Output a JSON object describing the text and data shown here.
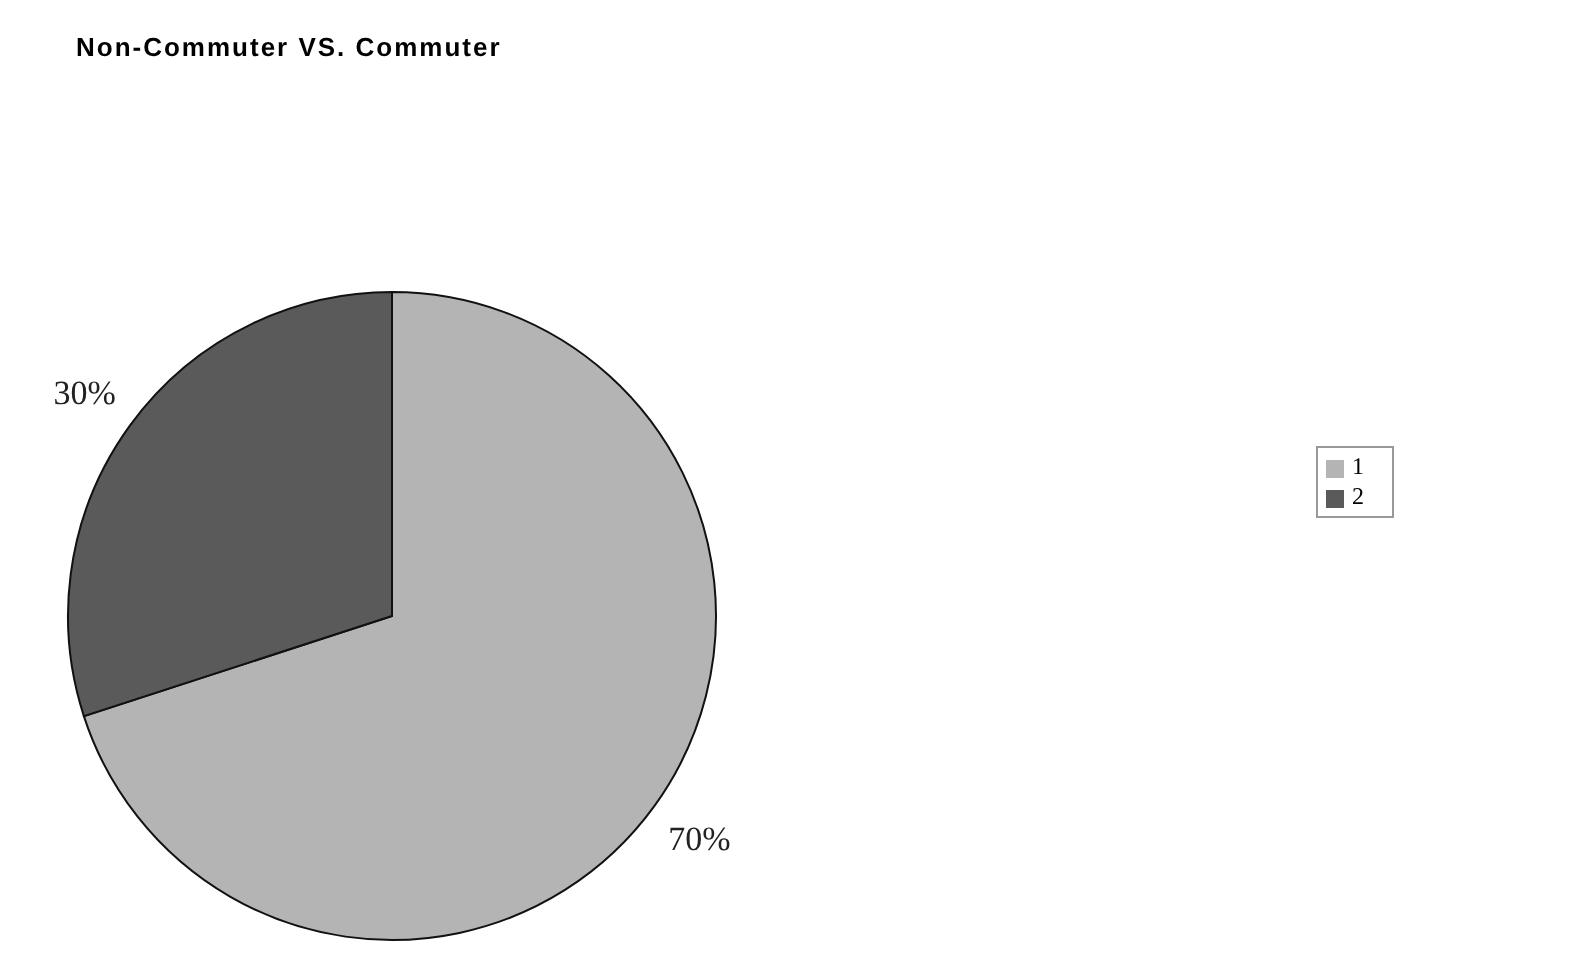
{
  "chart_data": {
    "type": "pie",
    "title": "Non-Commuter VS. Commuter",
    "categories": [
      "1",
      "2"
    ],
    "values": [
      70,
      30
    ],
    "colors": [
      "#b4b4b4",
      "#5a5a5a"
    ],
    "value_labels": [
      "70%",
      "30%"
    ],
    "legend": "right"
  }
}
